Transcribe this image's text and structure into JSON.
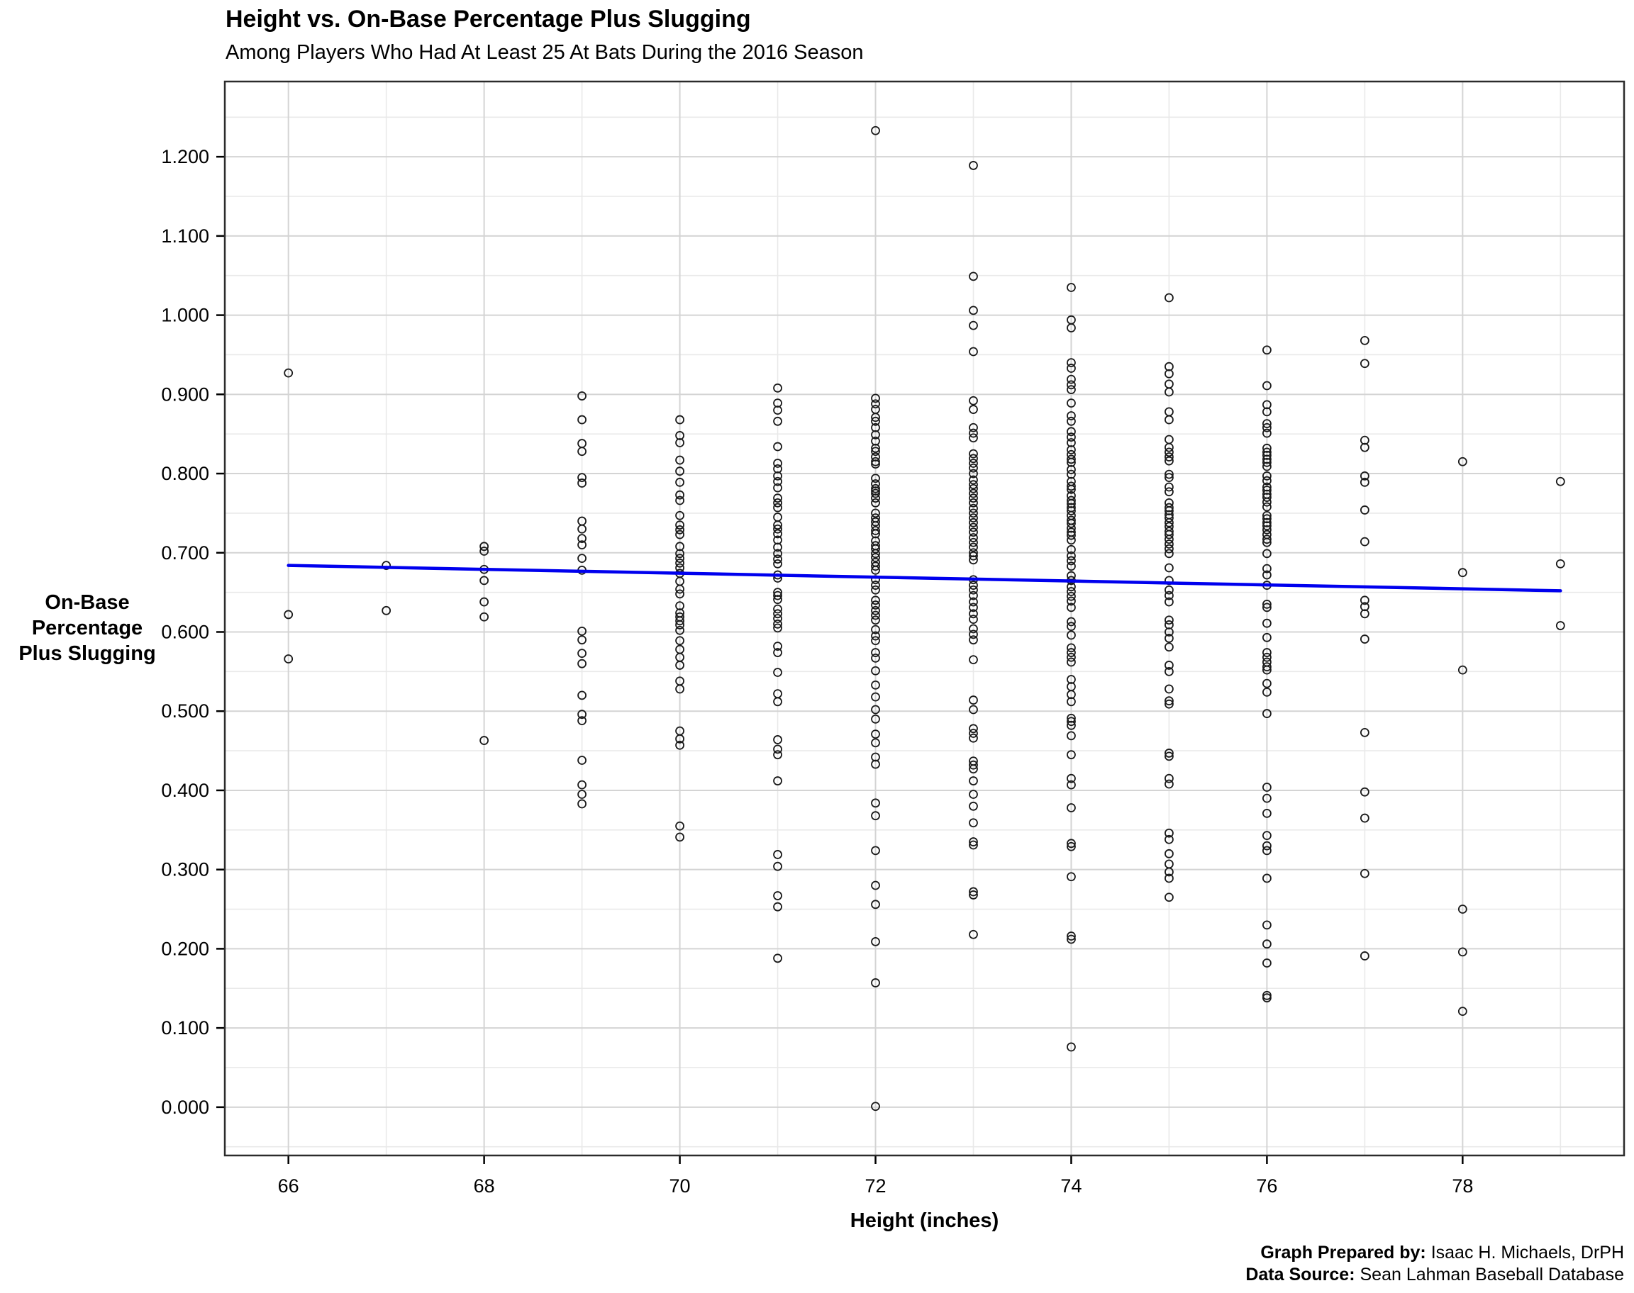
{
  "title": "Height vs. On-Base Percentage Plus Slugging",
  "subtitle": "Among Players Who Had At Least 25 At Bats During the 2016 Season",
  "caption": {
    "prepared_by_label": "Graph Prepared by:",
    "prepared_by": "Isaac H. Michaels, DrPH",
    "source_label": "Data Source:",
    "source": "Sean Lahman Baseball Database"
  },
  "colors": {
    "point_stroke": "#1a1a1a",
    "trend_line": "#0000ee",
    "grid_major": "#d4d4d4",
    "grid_minor": "#e9e9e9",
    "panel_border": "#2b2b2b",
    "text": "#000000"
  },
  "chart_data": {
    "type": "scatter",
    "title": "Height vs. On-Base Percentage Plus Slugging",
    "subtitle": "Among Players Who Had At Least 25 At Bats During the 2016 Season",
    "xlabel": "Height (inches)",
    "ylabel": [
      "On-Base",
      "Percentage",
      "Plus Slugging"
    ],
    "x_ticks": [
      66,
      68,
      70,
      72,
      74,
      76,
      78
    ],
    "x_minor": [
      67,
      69,
      71,
      73,
      75,
      77,
      79
    ],
    "y_ticks": [
      "0.000",
      "0.100",
      "0.200",
      "0.300",
      "0.400",
      "0.500",
      "0.600",
      "0.700",
      "0.800",
      "0.900",
      "1.000",
      "1.100",
      "1.200"
    ],
    "y_tick_values": [
      0.0,
      0.1,
      0.2,
      0.3,
      0.4,
      0.5,
      0.6,
      0.7,
      0.8,
      0.9,
      1.0,
      1.1,
      1.2
    ],
    "y_minor": [
      -0.05,
      0.05,
      0.15,
      0.25,
      0.35,
      0.45,
      0.55,
      0.65,
      0.75,
      0.85,
      0.95,
      1.05,
      1.15,
      1.25
    ],
    "xlim": [
      65.35,
      79.65
    ],
    "ylim": [
      -0.061,
      1.295
    ],
    "grid": "major+minor",
    "legend": "none",
    "point_style": {
      "shape": "open-circle",
      "radius": 5.5
    },
    "trend_line": {
      "x": [
        66,
        79
      ],
      "y": [
        0.684,
        0.652
      ]
    },
    "series": [
      {
        "height": 66,
        "ops": [
          0.927,
          0.622,
          0.566
        ]
      },
      {
        "height": 67,
        "ops": [
          0.684,
          0.627
        ]
      },
      {
        "height": 68,
        "ops": [
          0.708,
          0.702,
          0.679,
          0.665,
          0.638,
          0.619,
          0.463
        ]
      },
      {
        "height": 69,
        "ops": [
          0.898,
          0.868,
          0.838,
          0.828,
          0.795,
          0.788,
          0.74,
          0.73,
          0.718,
          0.71,
          0.693,
          0.678,
          0.601,
          0.59,
          0.573,
          0.56,
          0.52,
          0.496,
          0.488,
          0.438,
          0.407,
          0.395,
          0.383
        ]
      },
      {
        "height": 70,
        "ops": [
          0.868,
          0.848,
          0.839,
          0.817,
          0.803,
          0.789,
          0.773,
          0.766,
          0.747,
          0.735,
          0.729,
          0.723,
          0.708,
          0.699,
          0.693,
          0.687,
          0.681,
          0.674,
          0.664,
          0.654,
          0.648,
          0.633,
          0.624,
          0.619,
          0.614,
          0.609,
          0.602,
          0.589,
          0.578,
          0.568,
          0.558,
          0.538,
          0.528,
          0.475,
          0.465,
          0.457,
          0.355,
          0.341
        ]
      },
      {
        "height": 71,
        "ops": [
          0.908,
          0.889,
          0.88,
          0.866,
          0.834,
          0.813,
          0.806,
          0.797,
          0.79,
          0.782,
          0.769,
          0.763,
          0.757,
          0.745,
          0.735,
          0.73,
          0.724,
          0.716,
          0.707,
          0.699,
          0.692,
          0.686,
          0.672,
          0.668,
          0.65,
          0.646,
          0.641,
          0.629,
          0.623,
          0.617,
          0.61,
          0.605,
          0.582,
          0.574,
          0.549,
          0.522,
          0.512,
          0.464,
          0.452,
          0.445,
          0.412,
          0.319,
          0.304,
          0.267,
          0.253,
          0.188
        ]
      },
      {
        "height": 72,
        "ops": [
          1.233,
          0.895,
          0.888,
          0.881,
          0.871,
          0.866,
          0.858,
          0.849,
          0.841,
          0.832,
          0.828,
          0.821,
          0.815,
          0.812,
          0.794,
          0.787,
          0.781,
          0.778,
          0.775,
          0.769,
          0.763,
          0.75,
          0.744,
          0.739,
          0.734,
          0.728,
          0.724,
          0.715,
          0.709,
          0.705,
          0.699,
          0.694,
          0.688,
          0.683,
          0.678,
          0.666,
          0.659,
          0.653,
          0.64,
          0.634,
          0.627,
          0.621,
          0.615,
          0.603,
          0.595,
          0.589,
          0.574,
          0.567,
          0.551,
          0.533,
          0.518,
          0.502,
          0.49,
          0.471,
          0.46,
          0.442,
          0.433,
          0.384,
          0.368,
          0.324,
          0.28,
          0.256,
          0.209,
          0.157,
          0.001
        ]
      },
      {
        "height": 73,
        "ops": [
          1.189,
          1.049,
          1.006,
          0.987,
          0.954,
          0.892,
          0.881,
          0.858,
          0.851,
          0.845,
          0.825,
          0.819,
          0.813,
          0.807,
          0.8,
          0.792,
          0.786,
          0.781,
          0.775,
          0.769,
          0.763,
          0.756,
          0.75,
          0.744,
          0.738,
          0.732,
          0.726,
          0.719,
          0.713,
          0.707,
          0.7,
          0.696,
          0.691,
          0.666,
          0.659,
          0.653,
          0.646,
          0.638,
          0.631,
          0.623,
          0.616,
          0.604,
          0.597,
          0.59,
          0.565,
          0.514,
          0.502,
          0.478,
          0.472,
          0.466,
          0.437,
          0.432,
          0.427,
          0.412,
          0.395,
          0.38,
          0.359,
          0.335,
          0.331,
          0.272,
          0.268,
          0.218
        ]
      },
      {
        "height": 74,
        "ops": [
          1.035,
          0.994,
          0.984,
          0.94,
          0.933,
          0.919,
          0.912,
          0.906,
          0.889,
          0.873,
          0.866,
          0.853,
          0.846,
          0.839,
          0.83,
          0.824,
          0.818,
          0.814,
          0.805,
          0.799,
          0.79,
          0.784,
          0.78,
          0.772,
          0.766,
          0.762,
          0.757,
          0.753,
          0.747,
          0.741,
          0.737,
          0.731,
          0.726,
          0.722,
          0.716,
          0.704,
          0.696,
          0.69,
          0.683,
          0.671,
          0.665,
          0.657,
          0.651,
          0.645,
          0.639,
          0.631,
          0.613,
          0.607,
          0.596,
          0.58,
          0.574,
          0.568,
          0.562,
          0.54,
          0.531,
          0.521,
          0.512,
          0.491,
          0.487,
          0.482,
          0.469,
          0.445,
          0.415,
          0.407,
          0.378,
          0.333,
          0.329,
          0.291,
          0.216,
          0.212,
          0.076
        ]
      },
      {
        "height": 75,
        "ops": [
          1.022,
          0.935,
          0.926,
          0.913,
          0.903,
          0.878,
          0.868,
          0.843,
          0.833,
          0.827,
          0.821,
          0.816,
          0.799,
          0.795,
          0.783,
          0.777,
          0.763,
          0.757,
          0.753,
          0.748,
          0.744,
          0.738,
          0.733,
          0.727,
          0.723,
          0.717,
          0.711,
          0.705,
          0.699,
          0.681,
          0.665,
          0.653,
          0.646,
          0.638,
          0.615,
          0.609,
          0.6,
          0.592,
          0.581,
          0.558,
          0.55,
          0.528,
          0.513,
          0.509,
          0.447,
          0.443,
          0.415,
          0.408,
          0.346,
          0.338,
          0.32,
          0.307,
          0.297,
          0.289,
          0.265
        ]
      },
      {
        "height": 76,
        "ops": [
          0.956,
          0.911,
          0.887,
          0.878,
          0.863,
          0.858,
          0.851,
          0.832,
          0.827,
          0.823,
          0.818,
          0.814,
          0.809,
          0.797,
          0.791,
          0.783,
          0.779,
          0.774,
          0.77,
          0.764,
          0.758,
          0.747,
          0.743,
          0.738,
          0.734,
          0.729,
          0.723,
          0.717,
          0.713,
          0.699,
          0.68,
          0.672,
          0.659,
          0.635,
          0.631,
          0.611,
          0.593,
          0.574,
          0.568,
          0.562,
          0.556,
          0.552,
          0.535,
          0.524,
          0.497,
          0.404,
          0.39,
          0.371,
          0.343,
          0.33,
          0.324,
          0.289,
          0.23,
          0.206,
          0.182,
          0.141,
          0.138
        ]
      },
      {
        "height": 77,
        "ops": [
          0.968,
          0.939,
          0.842,
          0.833,
          0.797,
          0.789,
          0.754,
          0.714,
          0.64,
          0.632,
          0.623,
          0.591,
          0.473,
          0.398,
          0.365,
          0.295,
          0.191
        ]
      },
      {
        "height": 78,
        "ops": [
          0.815,
          0.675,
          0.552,
          0.25,
          0.196,
          0.121
        ]
      },
      {
        "height": 79,
        "ops": [
          0.79,
          0.686,
          0.608
        ]
      }
    ]
  }
}
